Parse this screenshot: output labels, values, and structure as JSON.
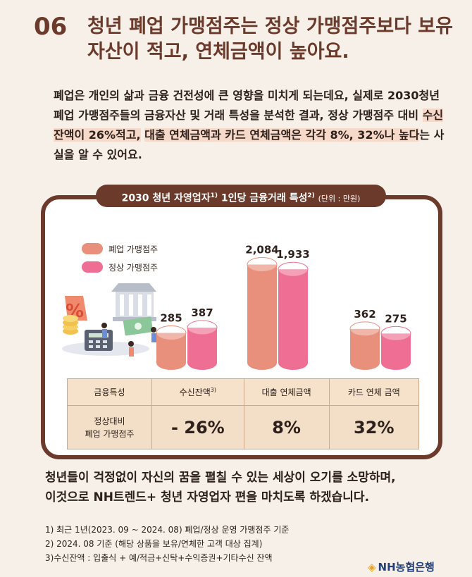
{
  "headline": {
    "number": "06",
    "title": "청년 폐업 가맹점주는 정상 가맹점주보다 보유자산이 적고, 연체금액이 높아요."
  },
  "intro": {
    "part1": "폐업은 개인의 삶과 금융 건전성에 큰 영향을 미치게 되는데요, 실제로 2030청년 폐업 가맹점주들의 금융자산 및 거래 특성을 분석한 결과, 정상 가맹점주 대비 ",
    "highlight1": "수신잔액이 26%적고,",
    "space": " ",
    "highlight2": "대출 연체금액과 카드 연체금액은 각각 8%, 32%나 높다",
    "part2": "는 사실을 알 수 있어요."
  },
  "panel": {
    "title": "2030 청년 자영업자",
    "sup1": "1)",
    "title2": " 1인당 금융거래 특성",
    "sup2": "2)",
    "unit": "(단위 : 만원)"
  },
  "colors": {
    "closed": "#e9907c",
    "normal": "#ee6f93",
    "brown": "#6b3a2b"
  },
  "chart_data": {
    "type": "bar",
    "categories": [
      "수신잔액",
      "대출 연체금액",
      "카드 연체 금액"
    ],
    "series": [
      {
        "name": "폐업 가맹점주",
        "values": [
          285,
          2084,
          362
        ]
      },
      {
        "name": "정상 가맹점주",
        "values": [
          387,
          1933,
          275
        ]
      }
    ],
    "value_labels": [
      "285",
      "387",
      "2,084",
      "1,933",
      "362",
      "275"
    ],
    "legend": "top-left"
  },
  "table": {
    "headers": [
      "금융특성",
      "수신잔액",
      "대출 연체금액",
      "카드 연체 금액"
    ],
    "header_sup": "3)",
    "row_label_1": "정상대비",
    "row_label_2": "폐업 가맹점주",
    "values": [
      "- 26%",
      "8%",
      "32%"
    ]
  },
  "closing": {
    "line1": "청년들이 걱정없이 자신의 꿈을 펼칠 수 있는 세상이 오기를 소망하며,",
    "line2": "이것으로 NH트렌드+ 청년 자영업자 편을 마치도록 하겠습니다."
  },
  "notes": [
    "1) 최근 1년(2023. 09 ~ 2024. 08) 폐업/정상 운영 가맹점주 기준",
    "2) 2024. 08 기준 (해당 상품을 보유/연체한 고객 대상 집계)",
    "3)수신잔액 : 입출식 + 예/적금+신탁+수익증권+기타수신 잔액"
  ],
  "logo": {
    "text": "NH농협은행"
  }
}
